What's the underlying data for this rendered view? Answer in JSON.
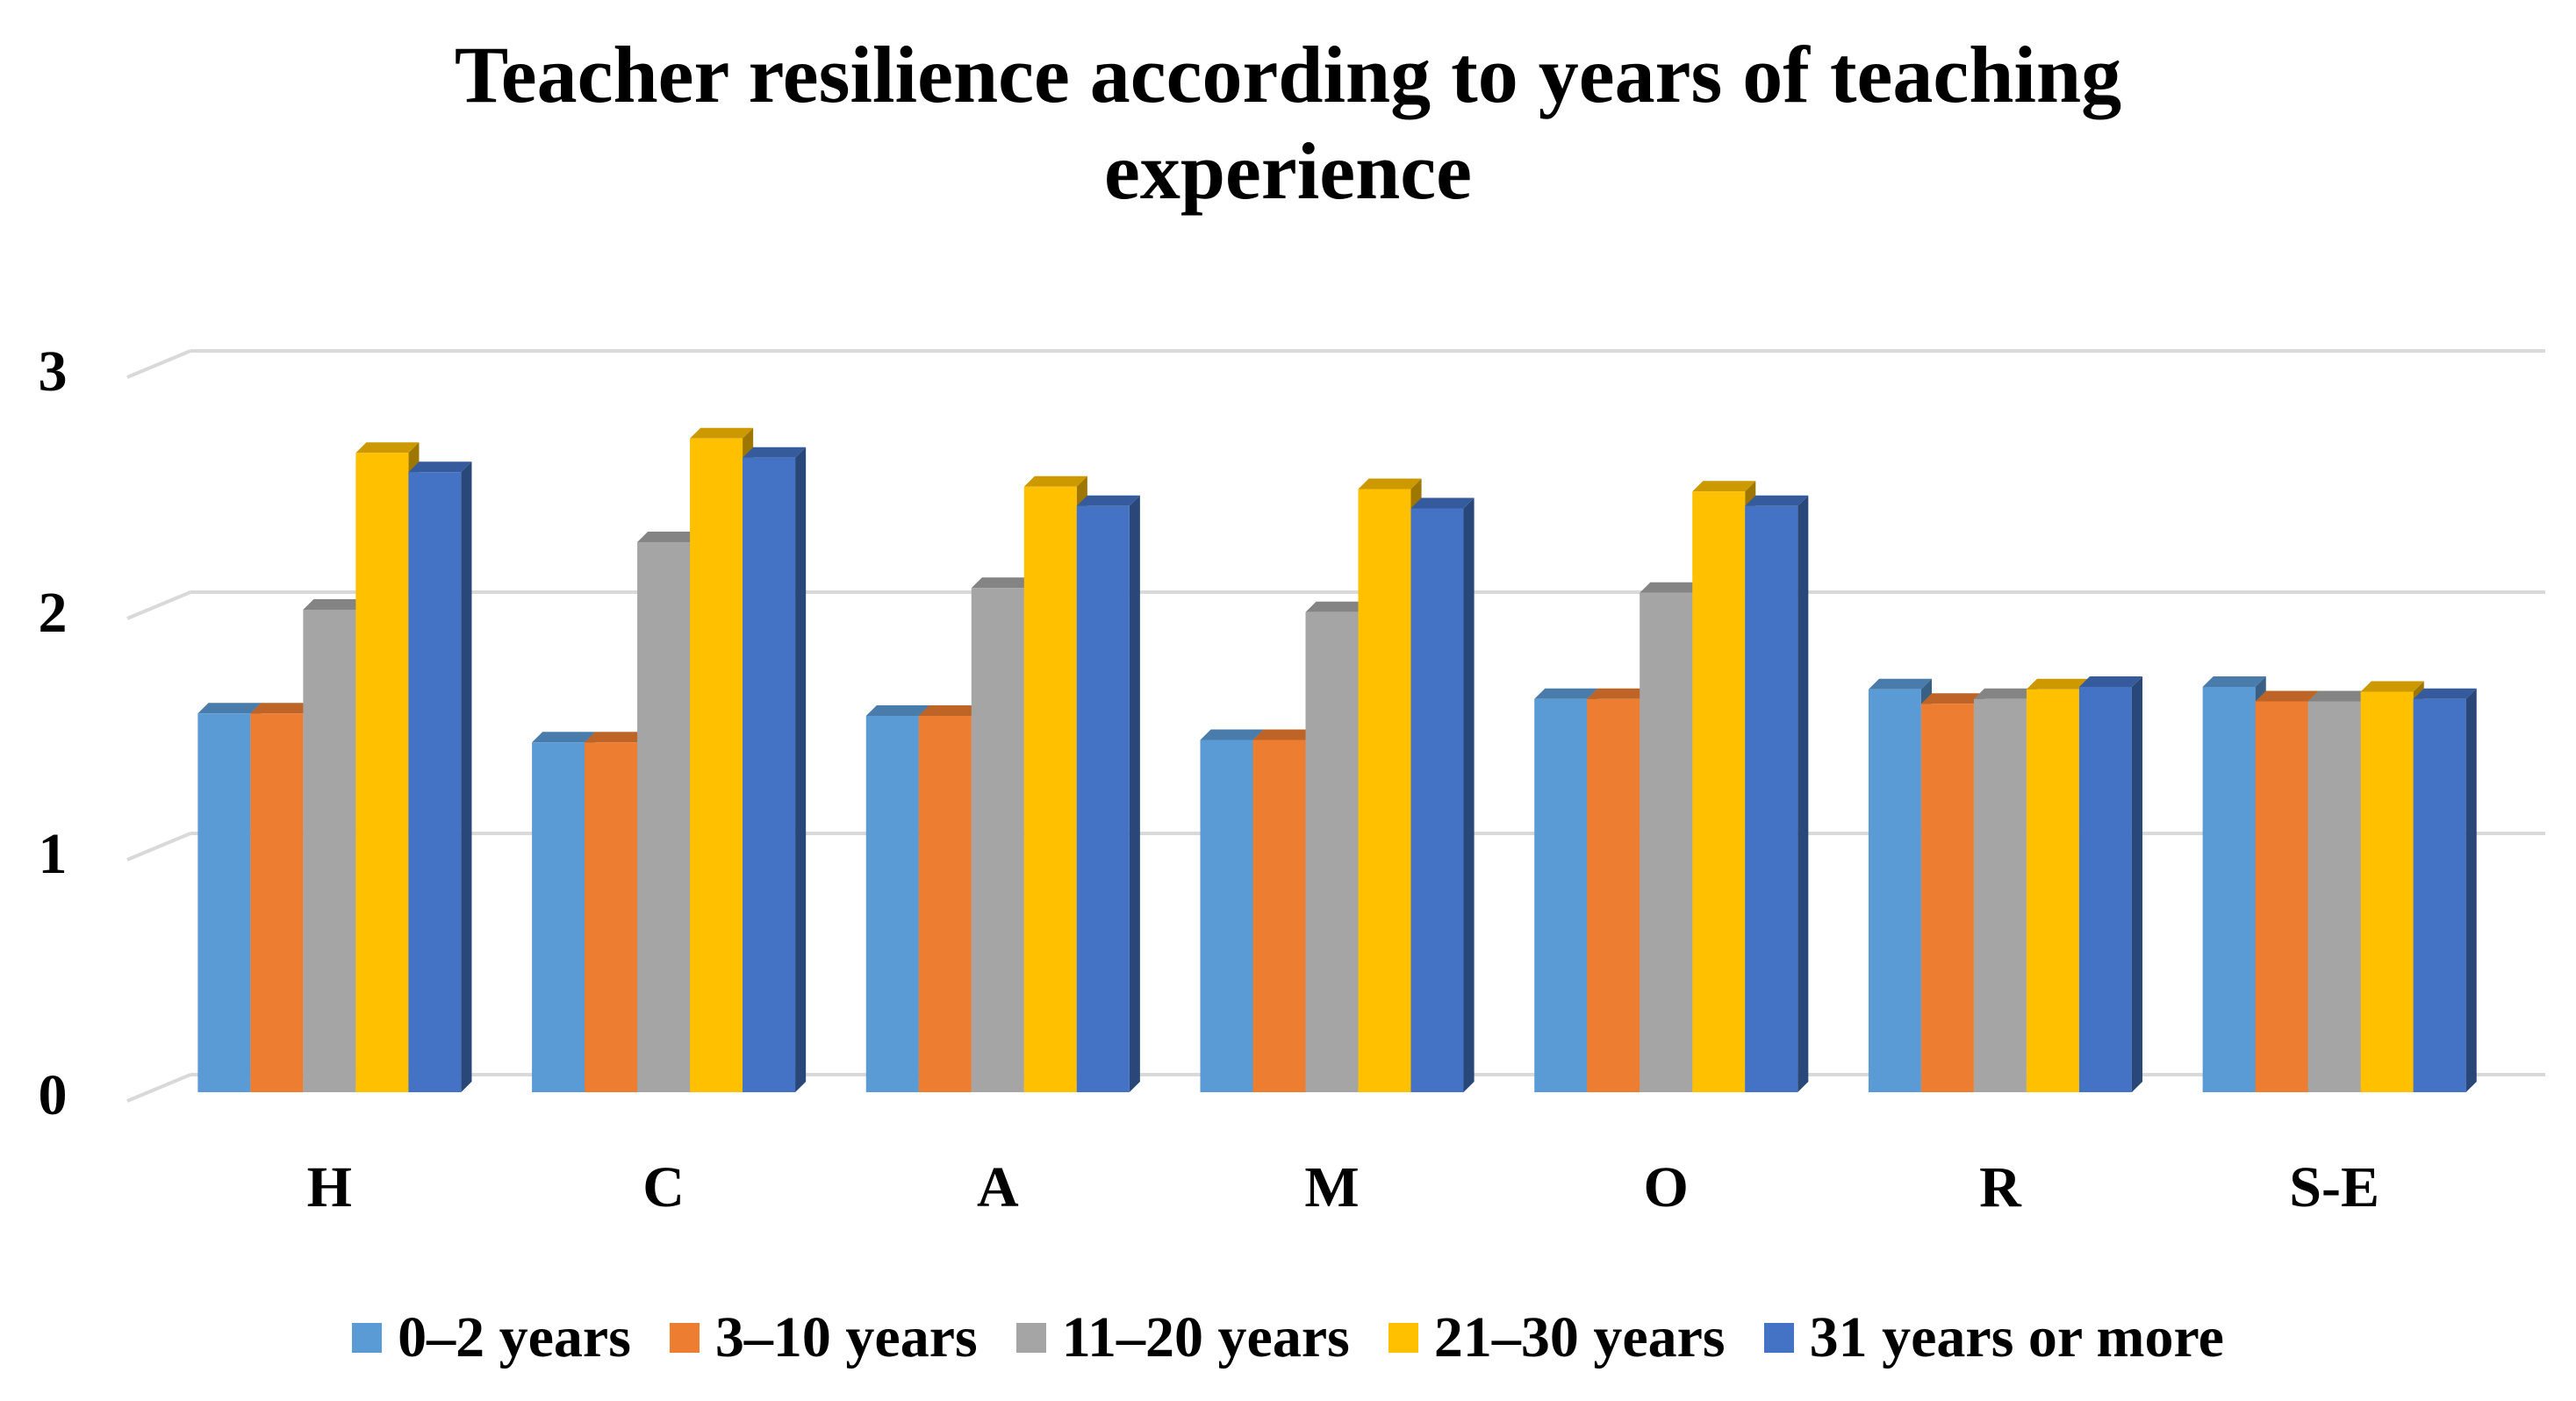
{
  "chart_data": {
    "type": "bar",
    "title_lines": [
      "Teacher resilience according to years of teaching",
      "experience"
    ],
    "categories": [
      "H",
      "C",
      "A",
      "M",
      "O",
      "R",
      "S-E"
    ],
    "series": [
      {
        "name": "0–2 years",
        "color": "#5B9BD5",
        "values": [
          1.57,
          1.45,
          1.56,
          1.46,
          1.63,
          1.67,
          1.68
        ]
      },
      {
        "name": "3–10 years",
        "color": "#ED7D31",
        "values": [
          1.57,
          1.45,
          1.56,
          1.46,
          1.63,
          1.61,
          1.62
        ]
      },
      {
        "name": "11–20 years",
        "color": "#A5A5A5",
        "values": [
          2.0,
          2.28,
          2.09,
          1.99,
          2.07,
          1.63,
          1.62
        ]
      },
      {
        "name": "21–30 years",
        "color": "#FFC000",
        "values": [
          2.65,
          2.71,
          2.51,
          2.5,
          2.49,
          1.67,
          1.66
        ]
      },
      {
        "name": "31 years or more",
        "color": "#4472C4",
        "values": [
          2.57,
          2.63,
          2.43,
          2.42,
          2.43,
          1.68,
          1.63
        ]
      }
    ],
    "yticks": [
      0,
      1,
      2,
      3
    ],
    "ylim": [
      0,
      3
    ],
    "xlabel": "",
    "ylabel": "",
    "grid": true,
    "legend_position": "bottom"
  }
}
